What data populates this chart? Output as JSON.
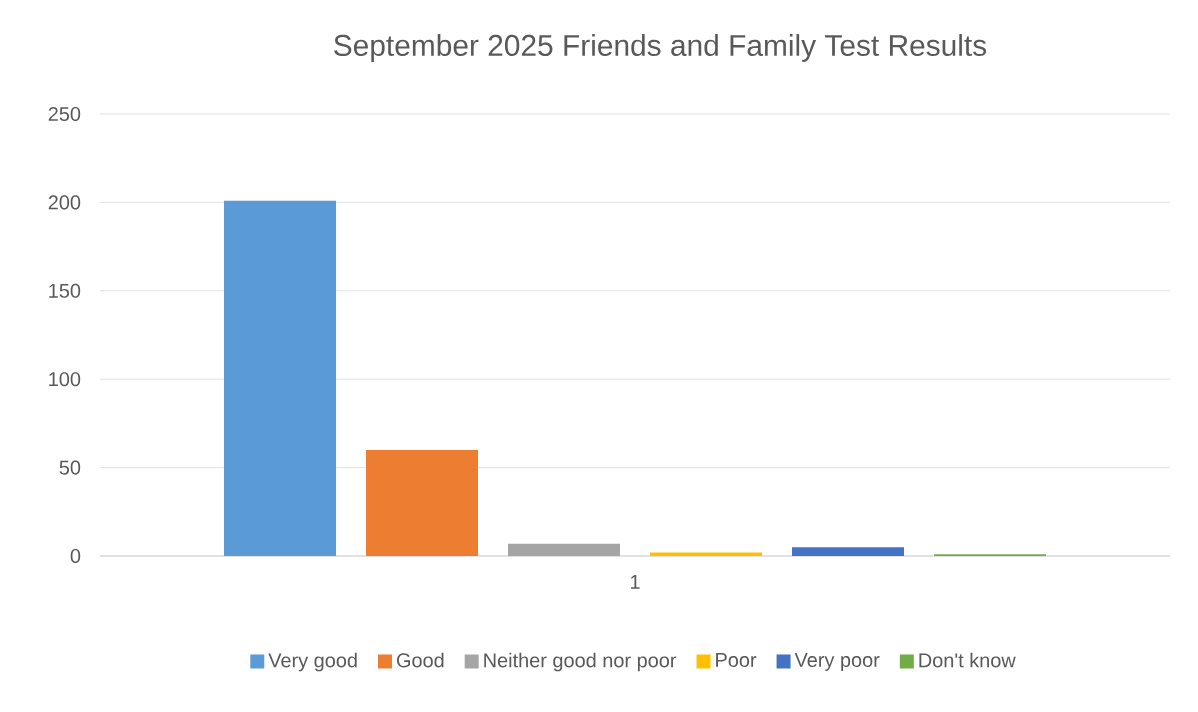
{
  "chart_data": {
    "type": "bar",
    "title": "September 2025 Friends and Family Test Results",
    "categories": [
      "1"
    ],
    "series": [
      {
        "name": "Very good",
        "color": "#5b9bd5",
        "values": [
          201
        ]
      },
      {
        "name": "Good",
        "color": "#ed7d31",
        "values": [
          60
        ]
      },
      {
        "name": "Neither good nor poor",
        "color": "#a5a5a5",
        "values": [
          7
        ]
      },
      {
        "name": "Poor",
        "color": "#ffc000",
        "values": [
          2
        ]
      },
      {
        "name": "Very poor",
        "color": "#4472c4",
        "values": [
          5
        ]
      },
      {
        "name": "Don't know",
        "color": "#70ad47",
        "values": [
          1
        ]
      }
    ],
    "ylim": [
      0,
      250
    ],
    "yticks": [
      0,
      50,
      100,
      150,
      200,
      250
    ],
    "grid": "y",
    "legend": "bottom"
  }
}
